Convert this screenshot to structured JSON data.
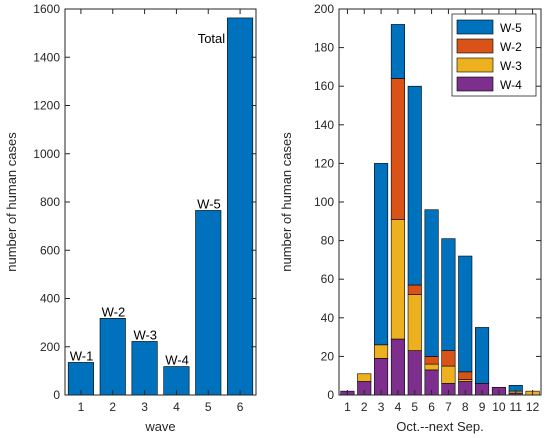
{
  "chart_data": [
    {
      "type": "bar",
      "categories": [
        "1",
        "2",
        "3",
        "4",
        "5",
        "6"
      ],
      "values": [
        135,
        318,
        222,
        118,
        765,
        1563
      ],
      "bar_labels": [
        "W-1",
        "W-2",
        "W-3",
        "W-4",
        "W-5",
        "Total"
      ],
      "xlabel": "wave",
      "ylabel": "number of human cases",
      "ylim": [
        0,
        1600
      ],
      "yticks": [
        0,
        200,
        400,
        600,
        800,
        1000,
        1200,
        1400,
        1600
      ],
      "color": "#0072BD",
      "grid": false
    },
    {
      "type": "stacked-bar",
      "categories": [
        "1",
        "2",
        "3",
        "4",
        "5",
        "6",
        "7",
        "8",
        "9",
        "10",
        "11",
        "12"
      ],
      "series": [
        {
          "name": "W-4",
          "color": "#7E2F8E",
          "values": [
            2,
            7,
            19,
            29,
            23,
            13,
            6,
            7,
            6,
            4,
            1,
            0
          ]
        },
        {
          "name": "W-3",
          "color": "#EDB120",
          "values": [
            0,
            4,
            7,
            62,
            29,
            3,
            9,
            1,
            0,
            0,
            1,
            2
          ]
        },
        {
          "name": "W-2",
          "color": "#D95319",
          "values": [
            0,
            0,
            0,
            73,
            5,
            4,
            8,
            4,
            0,
            0,
            0,
            0
          ]
        },
        {
          "name": "W-5",
          "color": "#0072BD",
          "values": [
            0,
            0,
            94,
            28,
            103,
            76,
            58,
            60,
            29,
            0,
            3,
            0
          ]
        }
      ],
      "legend_order": [
        "W-5",
        "W-2",
        "W-3",
        "W-4"
      ],
      "legend_position": "top-right",
      "xlabel": "Oct.--next Sep.",
      "ylabel": "number of human cases",
      "ylim": [
        0,
        200
      ],
      "yticks": [
        0,
        20,
        40,
        60,
        80,
        100,
        120,
        140,
        160,
        180,
        200
      ],
      "grid": false
    }
  ]
}
